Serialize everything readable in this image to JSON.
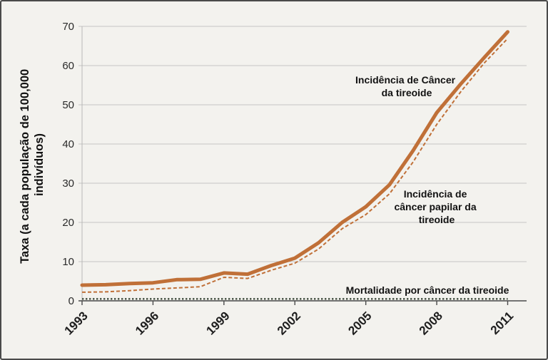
{
  "chart_data": {
    "type": "line",
    "x": [
      1993,
      1994,
      1995,
      1996,
      1997,
      1998,
      1999,
      2000,
      2001,
      2002,
      2003,
      2004,
      2005,
      2006,
      2007,
      2008,
      2009,
      2010,
      2011
    ],
    "xticks": [
      1993,
      1996,
      1999,
      2002,
      2005,
      2008,
      2011
    ],
    "yticks": [
      0,
      10,
      20,
      30,
      40,
      50,
      60,
      70
    ],
    "xlim": [
      1993,
      2011.8
    ],
    "ylim": [
      0,
      70
    ],
    "ylabel": [
      "Taxa (a cada população de 100,000",
      "indivíduos)"
    ],
    "grid": {
      "horizontal": true,
      "vertical": false
    },
    "series": [
      {
        "label": [
          "Incidência de Câncer",
          "da tireoide"
        ],
        "color": "#c07038",
        "values": [
          4.0,
          4.1,
          4.4,
          4.6,
          5.4,
          5.5,
          7.1,
          6.8,
          9.0,
          10.9,
          14.8,
          20.0,
          24.0,
          29.6,
          38.3,
          48.0,
          55.2,
          62.0,
          68.6
        ]
      },
      {
        "label": [
          "Incidência de",
          "câncer papilar da",
          "tireoide"
        ],
        "color": "#c07038",
        "values": [
          2.2,
          2.3,
          2.6,
          3.0,
          3.3,
          3.6,
          6.0,
          5.7,
          7.8,
          9.6,
          13.2,
          18.4,
          22.0,
          27.3,
          35.4,
          45.0,
          53.2,
          60.6,
          66.9
        ]
      },
      {
        "label": [
          "Mortalidade por câncer da tireoide"
        ],
        "color": "#4e5a4c",
        "values": [
          0.5,
          0.5,
          0.5,
          0.5,
          0.5,
          0.5,
          0.5,
          0.5,
          0.5,
          0.5,
          0.5,
          0.5,
          0.5,
          0.5,
          0.5,
          0.5,
          0.5,
          0.5,
          0.5
        ]
      }
    ]
  }
}
